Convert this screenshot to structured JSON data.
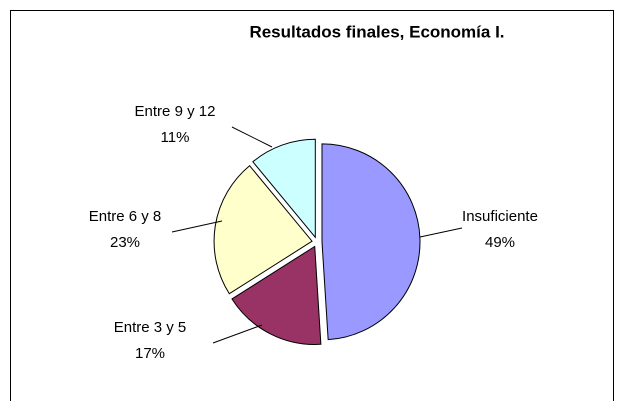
{
  "chart_data": {
    "type": "pie",
    "title": "Resultados finales, Economía I.",
    "categories": [
      "Insuficiente",
      "Entre 3 y 5",
      "Entre 6 y 8",
      "Entre 9 y 12"
    ],
    "values": [
      49,
      17,
      23,
      11
    ],
    "value_labels": [
      "49%",
      "17%",
      "23%",
      "11%"
    ],
    "colors": [
      "#9999ff",
      "#993366",
      "#ffffcc",
      "#ccffff"
    ]
  }
}
